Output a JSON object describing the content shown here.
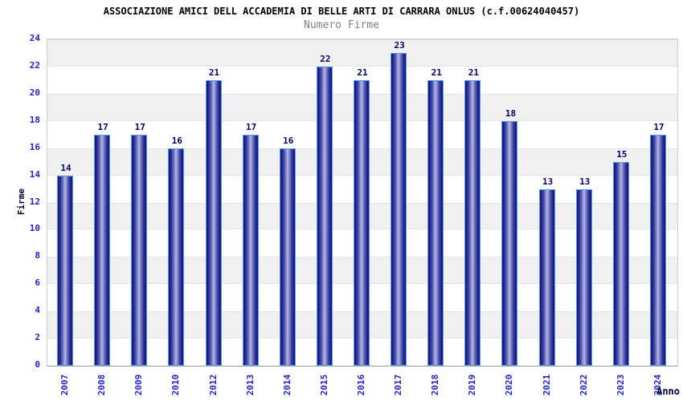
{
  "chart_data": {
    "type": "bar",
    "title": "ASSOCIAZIONE AMICI DELL ACCADEMIA DI BELLE ARTI DI CARRARA ONLUS (c.f.00624040457)",
    "subtitle": "Numero Firme",
    "xlabel": "Anno",
    "ylabel": "Firme",
    "categories": [
      "2007",
      "2008",
      "2009",
      "2010",
      "2012",
      "2013",
      "2014",
      "2015",
      "2016",
      "2017",
      "2018",
      "2019",
      "2020",
      "2021",
      "2022",
      "2023",
      "2024"
    ],
    "values": [
      14,
      17,
      17,
      16,
      21,
      17,
      16,
      22,
      21,
      23,
      21,
      21,
      18,
      13,
      13,
      15,
      17
    ],
    "ylim": [
      0,
      24
    ],
    "ytick_step": 2,
    "grid": "alternating-horizontal-bands",
    "band_values_gray_top": [
      24,
      20,
      16,
      12,
      8,
      4
    ],
    "legend": "none",
    "colors": {
      "bar_edge": "#16167e",
      "bar_center": "#abb1e0",
      "bar_border": "#4fa0f2",
      "tick_label": "#2222cc",
      "value_label": "#000066",
      "axis_title": "#000033",
      "title": "#000000",
      "subtitle": "#808080",
      "band": "#f0f0f0",
      "plot_border": "#cccccc"
    }
  }
}
